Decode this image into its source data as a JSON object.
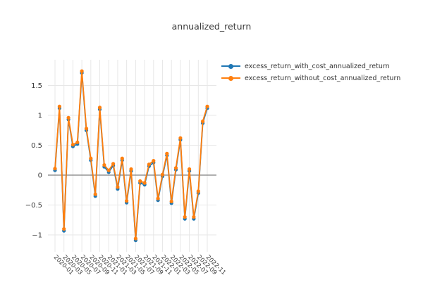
{
  "page": {
    "title": "annualized_return"
  },
  "legend": {
    "items": [
      {
        "label": "excess_return_with_cost_annualized_return",
        "color": "#1f77b4"
      },
      {
        "label": "excess_return_without_cost_annualized_return",
        "color": "#ff7f0e"
      }
    ]
  },
  "chart_data": {
    "type": "line",
    "title": "annualized_return",
    "x": [
      "2020-01",
      "2020-02",
      "2020-03",
      "2020-04",
      "2020-05",
      "2020-06",
      "2020-07",
      "2020-08",
      "2020-09",
      "2020-10",
      "2020-11",
      "2020-12",
      "2021-01",
      "2021-02",
      "2021-03",
      "2021-04",
      "2021-05",
      "2021-06",
      "2021-07",
      "2021-08",
      "2021-09",
      "2021-10",
      "2021-11",
      "2021-12",
      "2022-01",
      "2022-02",
      "2022-03",
      "2022-04",
      "2022-05",
      "2022-06",
      "2022-07",
      "2022-08",
      "2022-09",
      "2022-10",
      "2022-11"
    ],
    "x_tick_labels": [
      "2020-01",
      "2020-03",
      "2020-05",
      "2020-07",
      "2020-09",
      "2020-11",
      "2021-01",
      "2021-03",
      "2021-05",
      "2021-07",
      "2021-09",
      "2021-11",
      "2022-01",
      "2022-03",
      "2022-05",
      "2022-07",
      "2022-09",
      "2022-11"
    ],
    "series": [
      {
        "name": "excess_return_with_cost_annualized_return",
        "color": "#1f77b4",
        "values": [
          0.08,
          1.12,
          -0.93,
          0.93,
          0.48,
          0.52,
          1.71,
          0.75,
          0.25,
          -0.35,
          1.1,
          0.14,
          0.05,
          0.16,
          -0.23,
          0.25,
          -0.46,
          0.07,
          -1.09,
          -0.13,
          -0.16,
          0.15,
          0.21,
          -0.42,
          -0.02,
          0.33,
          -0.47,
          0.09,
          0.59,
          -0.73,
          0.07,
          -0.73,
          -0.3,
          0.87,
          1.12
        ]
      },
      {
        "name": "excess_return_without_cost_annualized_return",
        "color": "#ff7f0e",
        "values": [
          0.11,
          1.15,
          -0.9,
          0.96,
          0.51,
          0.55,
          1.74,
          0.78,
          0.28,
          -0.32,
          1.13,
          0.17,
          0.08,
          0.19,
          -0.2,
          0.28,
          -0.43,
          0.1,
          -1.06,
          -0.1,
          -0.13,
          0.18,
          0.24,
          -0.39,
          0.01,
          0.36,
          -0.44,
          0.12,
          0.62,
          -0.7,
          0.1,
          -0.7,
          -0.27,
          0.9,
          1.15
        ]
      }
    ],
    "y_ticks": [
      -1,
      -0.5,
      0,
      0.5,
      1,
      1.5
    ],
    "y_tick_labels": [
      "−1",
      "−0.5",
      "0",
      "0.5",
      "1",
      "1.5"
    ],
    "ylim": [
      -1.29,
      1.92
    ],
    "xlabel": "",
    "ylabel": "",
    "grid": true,
    "zero_line": true,
    "legend_position": "top-right",
    "colors": {
      "grid": "#e7e7e7",
      "zero_line": "#808080",
      "tick_text": "#3a3a3a"
    }
  }
}
